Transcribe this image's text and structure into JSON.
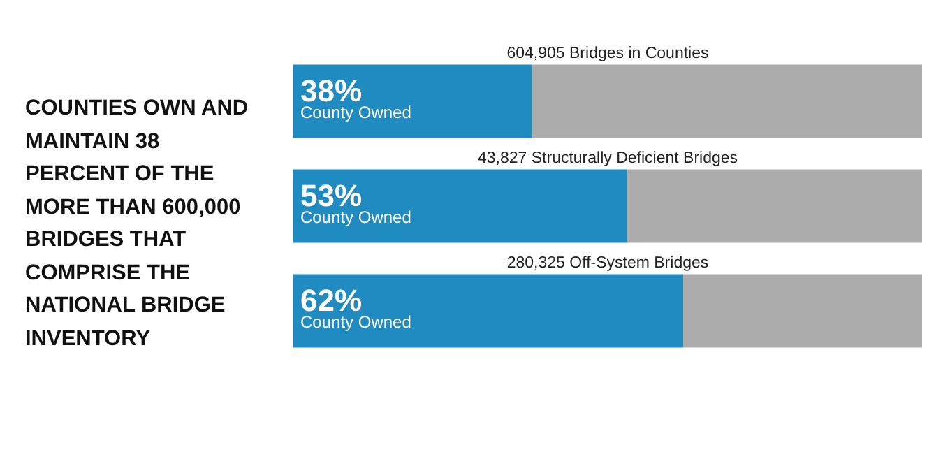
{
  "chart_data": {
    "type": "bar",
    "orientation": "horizontal",
    "stacked": true,
    "title": "COUNTIES OWN AND MAINTAIN 38 PERCENT OF THE MORE THAN 600,000 BRIDGES THAT COMPRISE THE NATIONAL BRIDGE INVENTORY",
    "categories": [
      "604,905 Bridges in Counties",
      "43,827 Structurally Deficient Bridges",
      "280,325 Off-System Bridges"
    ],
    "series": [
      {
        "name": "County Owned",
        "color": "#1f8bc0",
        "values": [
          38,
          53,
          62
        ],
        "value_labels": [
          "38%",
          "53%",
          "62%"
        ]
      },
      {
        "color": "#acacac",
        "values": [
          62,
          47,
          38
        ]
      }
    ],
    "xlim": [
      0,
      100
    ],
    "tick_labels": false
  }
}
